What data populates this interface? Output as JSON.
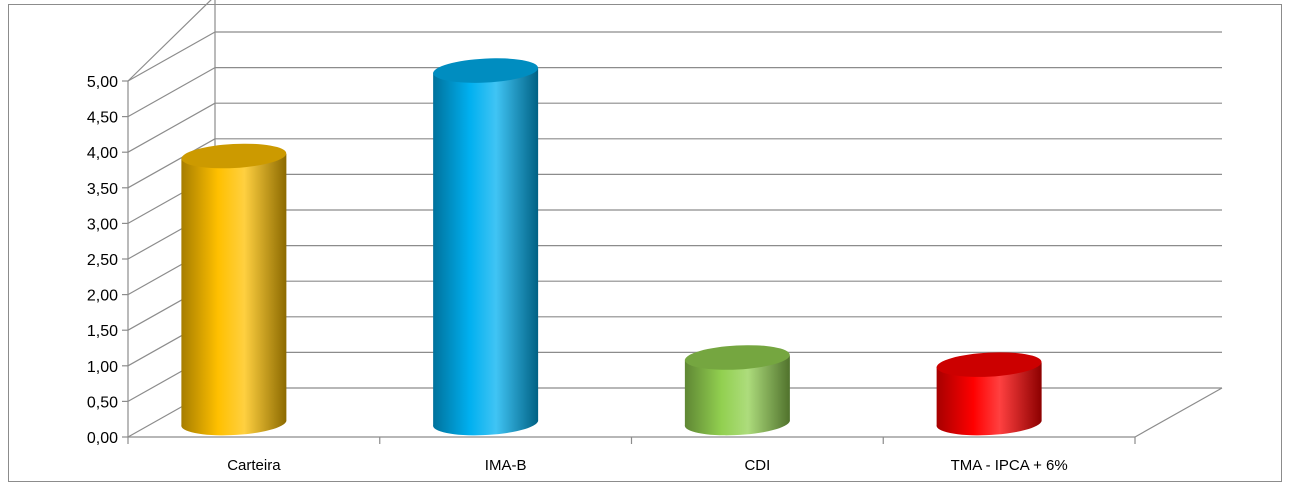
{
  "chart_data": {
    "type": "bar",
    "title": "",
    "xlabel": "",
    "ylabel": "",
    "categories": [
      "Carteira",
      "IMA-B",
      "CDI",
      "TMA - IPCA + 6%"
    ],
    "values": [
      3.75,
      4.95,
      0.92,
      0.82
    ],
    "colors": [
      "#ffc000",
      "#00b0f0",
      "#92d050",
      "#ff0000"
    ],
    "ylim": [
      0,
      5
    ],
    "yticks": [
      0,
      0.5,
      1.0,
      1.5,
      2.0,
      2.5,
      3.0,
      3.5,
      4.0,
      4.5,
      5.0
    ],
    "ytick_labels": [
      "0,00",
      "0,50",
      "1,00",
      "1,50",
      "2,00",
      "2,50",
      "3,00",
      "3,50",
      "4,00",
      "4,50",
      "5,00"
    ],
    "grid": true,
    "style": "3d-cylinder",
    "legend": "none"
  }
}
